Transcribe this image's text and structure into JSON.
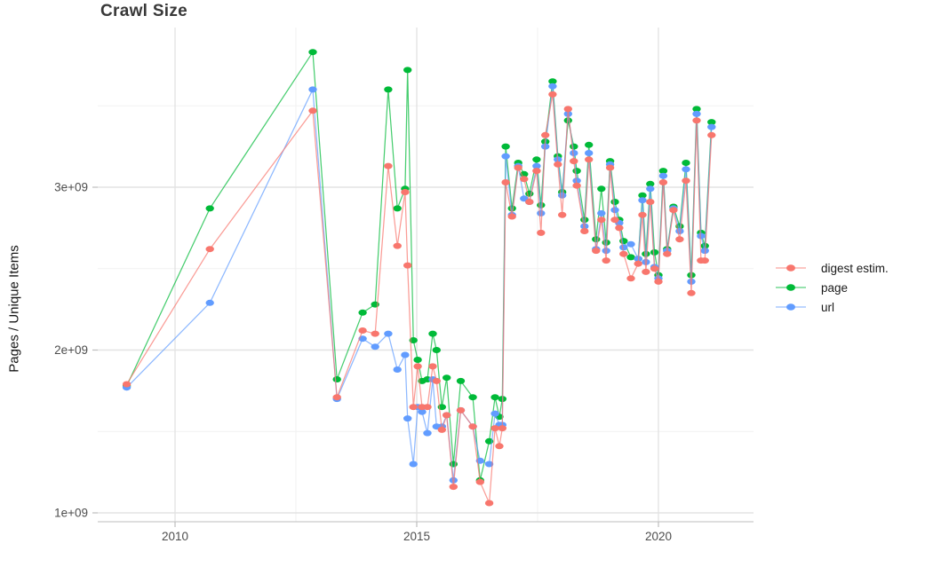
{
  "title": "Crawl Size",
  "legend": [
    {
      "label": "digest estim.",
      "color": "#F8766D"
    },
    {
      "label": "page",
      "color": "#00BA38"
    },
    {
      "label": "url",
      "color": "#619CFF"
    }
  ],
  "colors": {
    "background": "#ffffff",
    "grid_major": "#e3e3e3",
    "grid_minor": "#f1f1f1",
    "axis_line": "#c9c9c9",
    "tick_mark": "#bdbdbd",
    "tick_label": "#4d4d4d",
    "title": "#383838"
  },
  "chart_data": {
    "type": "line",
    "title": "Crawl Size",
    "xlabel": "",
    "ylabel": "Pages / Unique Items",
    "unit": "values in billions (1e9) of pages / unique items",
    "grid": true,
    "legend_position": "right",
    "x_axis": {
      "ticks": [
        2010,
        2015,
        2020
      ],
      "tick_labels": [
        "2010",
        "2015",
        "2020"
      ],
      "minor_ticks": [
        2012.5,
        2017.5
      ],
      "range": [
        2008.4,
        2022.0
      ]
    },
    "y_axis": {
      "ticks": [
        1,
        2,
        3
      ],
      "tick_labels": [
        "1e+09",
        "2e+09",
        "3e+09"
      ],
      "minor_ticks": [
        1.5,
        2.5,
        3.5
      ],
      "range": [
        0.95,
        4.0
      ]
    },
    "x_years": [
      2009.0,
      2010.72,
      2012.85,
      2013.35,
      2013.88,
      2014.14,
      2014.41,
      2014.6,
      2014.76,
      2014.81,
      2014.93,
      2015.02,
      2015.11,
      2015.22,
      2015.33,
      2015.41,
      2015.52,
      2015.62,
      2015.76,
      2015.91,
      2016.16,
      2016.31,
      2016.5,
      2016.62,
      2016.71,
      2016.77,
      2016.84,
      2016.97,
      2017.1,
      2017.22,
      2017.33,
      2017.48,
      2017.57,
      2017.66,
      2017.81,
      2017.92,
      2018.01,
      2018.13,
      2018.25,
      2018.31,
      2018.47,
      2018.56,
      2018.71,
      2018.82,
      2018.92,
      2019.0,
      2019.1,
      2019.19,
      2019.28,
      2019.43,
      2019.58,
      2019.67,
      2019.74,
      2019.83,
      2019.92,
      2020.0,
      2020.1,
      2020.18,
      2020.31,
      2020.44,
      2020.57,
      2020.68,
      2020.79,
      2020.88,
      2020.96,
      2021.1
    ],
    "series": [
      {
        "name": "digest estim.",
        "color": "#F8766D",
        "values": [
          1.79,
          2.62,
          3.47,
          1.71,
          2.12,
          2.1,
          3.13,
          2.64,
          2.97,
          2.52,
          1.65,
          1.9,
          1.65,
          1.65,
          1.9,
          1.81,
          1.51,
          1.6,
          1.16,
          1.63,
          1.53,
          1.19,
          1.06,
          1.52,
          1.41,
          1.52,
          3.03,
          2.82,
          3.12,
          3.05,
          2.91,
          3.1,
          2.72,
          3.32,
          3.57,
          3.14,
          2.83,
          3.48,
          3.16,
          3.01,
          2.73,
          3.17,
          2.61,
          2.8,
          2.55,
          3.12,
          2.8,
          2.75,
          2.59,
          2.44,
          2.53,
          2.83,
          2.48,
          2.91,
          2.5,
          2.42,
          3.03,
          2.59,
          2.86,
          2.68,
          3.04,
          2.35,
          3.41,
          2.55,
          2.55,
          3.32
        ]
      },
      {
        "name": "page",
        "color": "#00BA38",
        "values": [
          1.78,
          2.87,
          3.83,
          1.82,
          2.23,
          2.28,
          3.6,
          2.87,
          2.99,
          3.72,
          2.06,
          1.94,
          1.81,
          1.82,
          2.1,
          2.0,
          1.65,
          1.83,
          1.3,
          1.81,
          1.71,
          1.2,
          1.44,
          1.71,
          1.59,
          1.7,
          3.25,
          2.87,
          3.15,
          3.08,
          2.96,
          3.17,
          2.89,
          3.28,
          3.65,
          3.19,
          2.97,
          3.41,
          3.25,
          3.1,
          2.8,
          3.26,
          2.68,
          2.99,
          2.66,
          3.16,
          2.91,
          2.8,
          2.67,
          2.57,
          2.56,
          2.95,
          2.59,
          3.02,
          2.6,
          2.46,
          3.1,
          2.62,
          2.88,
          2.76,
          3.15,
          2.46,
          3.48,
          2.72,
          2.64,
          3.4
        ]
      },
      {
        "name": "url",
        "color": "#619CFF",
        "values": [
          1.77,
          2.29,
          3.6,
          1.7,
          2.07,
          2.02,
          2.1,
          1.88,
          1.97,
          1.58,
          1.3,
          1.65,
          1.62,
          1.49,
          1.82,
          1.53,
          1.53,
          1.6,
          1.2,
          1.63,
          1.53,
          1.32,
          1.3,
          1.61,
          1.54,
          1.54,
          3.19,
          2.83,
          3.13,
          2.93,
          2.91,
          3.13,
          2.84,
          3.25,
          3.62,
          3.17,
          2.95,
          3.45,
          3.21,
          3.04,
          2.76,
          3.21,
          2.62,
          2.84,
          2.61,
          3.14,
          2.86,
          2.78,
          2.63,
          2.65,
          2.56,
          2.92,
          2.54,
          2.99,
          2.51,
          2.44,
          3.07,
          2.61,
          2.87,
          2.73,
          3.11,
          2.42,
          3.45,
          2.7,
          2.61,
          3.37
        ]
      }
    ]
  }
}
